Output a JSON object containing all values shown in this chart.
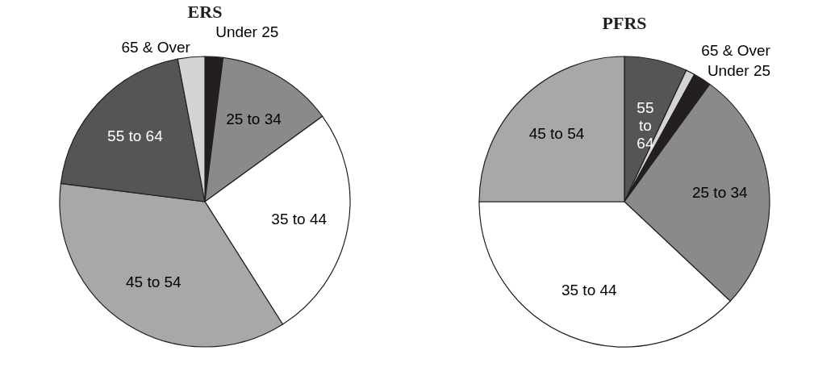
{
  "chart_data": [
    {
      "type": "pie",
      "title": "ERS",
      "categories": [
        "Under 25",
        "25 to 34",
        "35 to 44",
        "45 to 54",
        "55 to 64",
        "65 & Over"
      ],
      "values": [
        2,
        13,
        26,
        36,
        20,
        3
      ],
      "colors": [
        "#231f20",
        "#8a8a8a",
        "#ffffff",
        "#a8a8a8",
        "#555555",
        "#d4d4d4"
      ]
    },
    {
      "type": "pie",
      "title": "PFRS",
      "categories": [
        "55 to 64",
        "65 & Over",
        "Under 25",
        "25 to 34",
        "35 to 44",
        "45 to 54"
      ],
      "values": [
        7,
        1,
        2,
        27,
        38,
        25
      ],
      "colors": [
        "#555555",
        "#d4d4d4",
        "#231f20",
        "#8a8a8a",
        "#ffffff",
        "#a8a8a8"
      ]
    }
  ]
}
